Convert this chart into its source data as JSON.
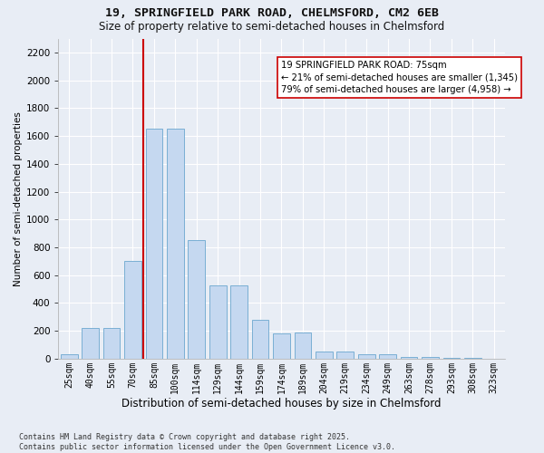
{
  "title_line1": "19, SPRINGFIELD PARK ROAD, CHELMSFORD, CM2 6EB",
  "title_line2": "Size of property relative to semi-detached houses in Chelmsford",
  "xlabel": "Distribution of semi-detached houses by size in Chelmsford",
  "ylabel": "Number of semi-detached properties",
  "categories": [
    "25sqm",
    "40sqm",
    "55sqm",
    "70sqm",
    "85sqm",
    "100sqm",
    "114sqm",
    "129sqm",
    "144sqm",
    "159sqm",
    "174sqm",
    "189sqm",
    "204sqm",
    "219sqm",
    "234sqm",
    "249sqm",
    "263sqm",
    "278sqm",
    "293sqm",
    "308sqm",
    "323sqm"
  ],
  "values": [
    30,
    220,
    220,
    700,
    1650,
    1650,
    850,
    525,
    525,
    280,
    180,
    185,
    50,
    50,
    30,
    30,
    15,
    10,
    8,
    3,
    1
  ],
  "bar_color": "#c5d8f0",
  "bar_edge_color": "#7aafd4",
  "red_line_x": 3.5,
  "red_line_color": "#cc0000",
  "annotation_text": "19 SPRINGFIELD PARK ROAD: 75sqm\n← 21% of semi-detached houses are smaller (1,345)\n79% of semi-detached houses are larger (4,958) →",
  "annotation_box_color": "#ffffff",
  "annotation_box_edge_color": "#cc0000",
  "ylim": [
    0,
    2300
  ],
  "yticks": [
    0,
    200,
    400,
    600,
    800,
    1000,
    1200,
    1400,
    1600,
    1800,
    2000,
    2200
  ],
  "background_color": "#e8edf5",
  "grid_color": "#ffffff",
  "footer_line1": "Contains HM Land Registry data © Crown copyright and database right 2025.",
  "footer_line2": "Contains public sector information licensed under the Open Government Licence v3.0."
}
